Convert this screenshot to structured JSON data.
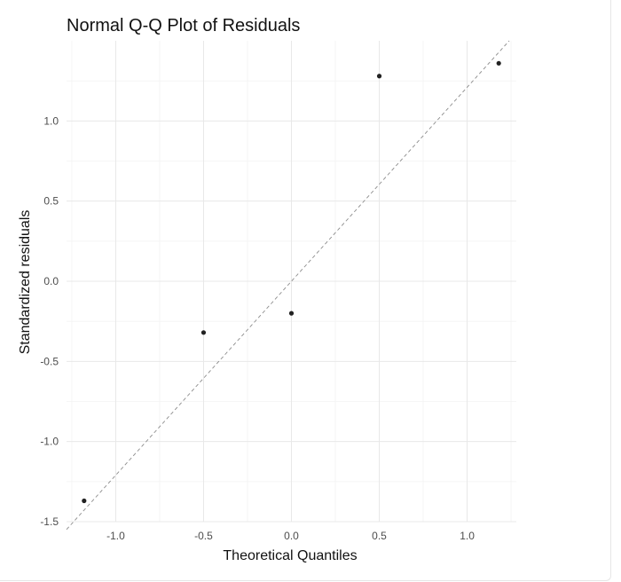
{
  "chart_data": {
    "type": "scatter",
    "title": "Normal Q-Q Plot of Residuals",
    "xlabel": "Theoretical Quantiles",
    "ylabel": "Standardized residuals",
    "xlim": [
      -1.28,
      1.28
    ],
    "ylim": [
      -1.5,
      1.5
    ],
    "x_ticks": [
      -1.0,
      -0.5,
      0.0,
      0.5,
      1.0
    ],
    "x_tick_labels": [
      "-1.0",
      "-0.5",
      "0.0",
      "0.5",
      "1.0"
    ],
    "y_ticks": [
      -1.5,
      -1.0,
      -0.5,
      0.0,
      0.5,
      1.0
    ],
    "y_tick_labels": [
      "-1.5",
      "-1.0",
      "-0.5",
      "0.0",
      "0.5",
      "1.0"
    ],
    "grid": true,
    "points": [
      {
        "x": -1.18,
        "y": -1.37
      },
      {
        "x": -0.5,
        "y": -0.32
      },
      {
        "x": 0.0,
        "y": -0.2
      },
      {
        "x": 0.5,
        "y": 1.28
      },
      {
        "x": 1.18,
        "y": 1.36
      }
    ],
    "reference_line": {
      "intercept": 0.0,
      "slope": 1.21
    }
  }
}
